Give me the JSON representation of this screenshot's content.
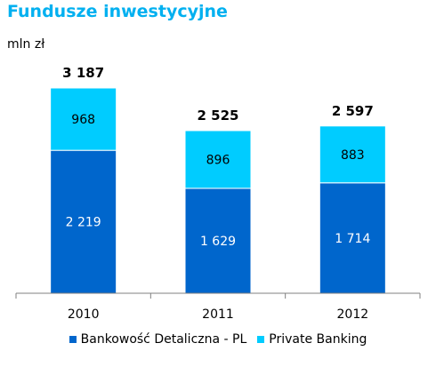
{
  "chart_data": {
    "type": "bar",
    "stacked": true,
    "title": "Fundusze inwestycyjne",
    "unit_label": "mln zł",
    "categories": [
      "2010",
      "2011",
      "2012"
    ],
    "series": [
      {
        "name": "Bankowość Detaliczna - PL",
        "color": "#0066cc",
        "values": [
          2219,
          1629,
          1714
        ],
        "labels": [
          "2 219",
          "1 629",
          "1 714"
        ]
      },
      {
        "name": "Private Banking",
        "color": "#00ccff",
        "values": [
          968,
          896,
          883
        ],
        "labels": [
          "968",
          "896",
          "883"
        ]
      }
    ],
    "totals": [
      3187,
      2525,
      2597
    ],
    "total_labels": [
      "3 187",
      "2 525",
      "2 597"
    ],
    "ylim": [
      0,
      3187
    ],
    "grid": false,
    "legend_position": "bottom"
  }
}
